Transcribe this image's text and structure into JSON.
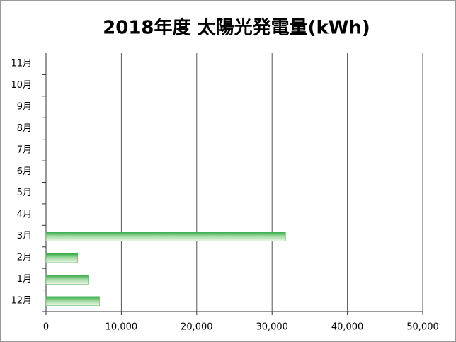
{
  "chart_data": {
    "type": "hbar",
    "title": "2018年度 太陽光発電量(kWh)",
    "categories": [
      "12月",
      "1月",
      "2月",
      "3月",
      "4月",
      "5月",
      "6月",
      "7月",
      "8月",
      "9月",
      "10月",
      "11月"
    ],
    "values": [
      7100,
      5600,
      4200,
      31800,
      null,
      null,
      null,
      null,
      null,
      null,
      null,
      null
    ],
    "color": "#3cb04c",
    "xlim": [
      0,
      50000
    ],
    "xticks": [
      0,
      {
        "value": 10000,
        "label": "10,000"
      },
      {
        "value": 20000,
        "label": "20,000"
      },
      {
        "value": 30000,
        "label": "30,000"
      },
      {
        "value": 40000,
        "label": "40,000"
      },
      {
        "value": 50000,
        "label": "50,000"
      }
    ],
    "grid": true
  }
}
